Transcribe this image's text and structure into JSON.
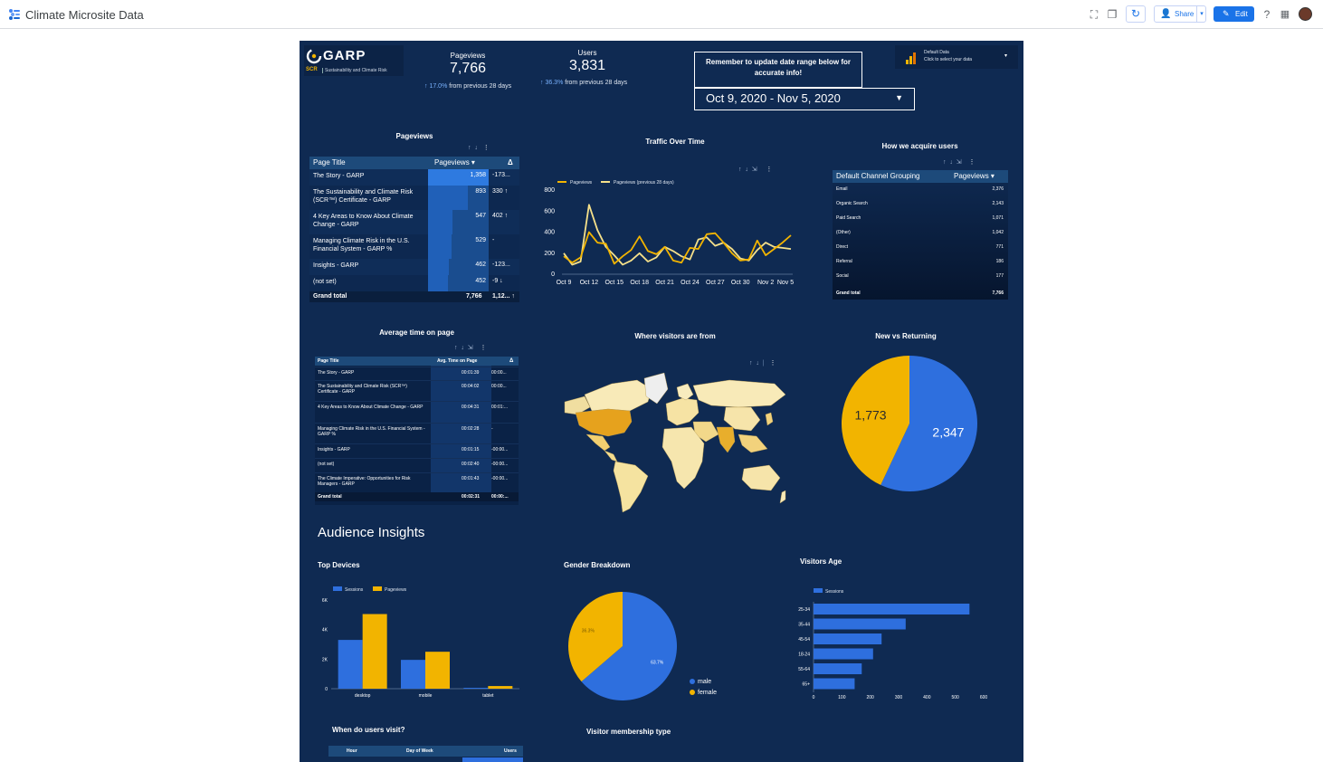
{
  "app": {
    "title": "Climate Microsite Data"
  },
  "toolbar": {
    "share_label": "Share",
    "edit_label": "Edit"
  },
  "header": {
    "logo_text": "GARP",
    "logo_sub_prefix": "SCR",
    "logo_sub": "Sustainability and Climate Risk",
    "kpi": [
      {
        "label": "Pageviews",
        "value": "7,766",
        "delta": "17.0%",
        "delta_suffix": "from previous 28 days"
      },
      {
        "label": "Users",
        "value": "3,831",
        "delta": "36.3%",
        "delta_suffix": "from previous 28 days"
      }
    ],
    "reminder": "Remember to update date range below for accurate info!",
    "date_range": "Oct 9, 2020 - Nov 5, 2020",
    "data_source_title": "Default Data",
    "data_source_sub": "Click to select your data"
  },
  "pageviews_table": {
    "title": "Pageviews",
    "headers": [
      "Page Title",
      "Pageviews ▾",
      "Δ"
    ],
    "rows": [
      {
        "title": "The Story - GARP",
        "value": "1,358",
        "delta": "-173...",
        "bar": 1.0
      },
      {
        "title": "The Sustainability and Climate Risk (SCR™) Certificate - GARP",
        "value": "893",
        "delta": "330 ↑",
        "bar": 0.66
      },
      {
        "title": "4 Key Areas to Know About Climate Change - GARP",
        "value": "547",
        "delta": "402 ↑",
        "bar": 0.4
      },
      {
        "title": "Managing Climate Risk in the U.S. Financial System - GARP %",
        "value": "529",
        "delta": "-",
        "bar": 0.39
      },
      {
        "title": "Insights - GARP",
        "value": "462",
        "delta": "-123...",
        "bar": 0.34
      },
      {
        "title": "(not set)",
        "value": "452",
        "delta": "-9 ↓",
        "bar": 0.33
      }
    ],
    "total_label": "Grand total",
    "total_value": "7,766",
    "total_delta": "1,12... ↑"
  },
  "traffic_chart": {
    "title": "Traffic Over Time"
  },
  "chart_data": [
    {
      "type": "line",
      "title": "Traffic Over Time",
      "x_ticks": [
        "Oct 9",
        "Oct 12",
        "Oct 15",
        "Oct 18",
        "Oct 21",
        "Oct 24",
        "Oct 27",
        "Oct 30",
        "Nov 2",
        "Nov 5"
      ],
      "ylim": [
        0,
        800
      ],
      "y_ticks": [
        "0",
        "200",
        "400",
        "600",
        "800"
      ],
      "series": [
        {
          "name": "Pageviews",
          "color": "#f2b400",
          "values": [
            170,
            110,
            160,
            400,
            300,
            290,
            100,
            170,
            230,
            360,
            220,
            190,
            260,
            130,
            110,
            250,
            240,
            380,
            390,
            300,
            200,
            130,
            140,
            320,
            180,
            240,
            300,
            370
          ]
        },
        {
          "name": "Pageviews (previous 28 days)",
          "color": "#f5e08a",
          "values": [
            200,
            90,
            120,
            660,
            420,
            260,
            180,
            90,
            130,
            200,
            120,
            160,
            260,
            220,
            170,
            140,
            330,
            350,
            270,
            300,
            240,
            150,
            130,
            230,
            300,
            260,
            250,
            240
          ]
        }
      ]
    },
    {
      "type": "pie",
      "title": "New vs Returning",
      "values": [
        2347,
        1773
      ],
      "labels": [
        "2,347",
        "1,773"
      ],
      "colors": [
        "#2e6fde",
        "#f2b400"
      ]
    },
    {
      "type": "bar",
      "title": "Top Devices",
      "categories": [
        "desktop",
        "mobile",
        "tablet"
      ],
      "ylim": [
        0,
        6000
      ],
      "y_ticks": [
        "0",
        "2K",
        "4K",
        "6K"
      ],
      "series": [
        {
          "name": "Sessions",
          "color": "#2e6fde",
          "values": [
            3300,
            1950,
            60
          ]
        },
        {
          "name": "Pageviews",
          "color": "#f2b400",
          "values": [
            5050,
            2500,
            180
          ]
        }
      ]
    },
    {
      "type": "pie",
      "title": "Gender Breakdown",
      "values": [
        63.7,
        36.3
      ],
      "labels": [
        "63.7%",
        "36.3%"
      ],
      "legend": [
        "male",
        "female"
      ],
      "colors": [
        "#2e6fde",
        "#f2b400"
      ]
    },
    {
      "type": "bar",
      "title": "Visitors Age",
      "categories": [
        "25-34",
        "35-44",
        "45-54",
        "18-24",
        "55-64",
        "65+"
      ],
      "xlim": [
        0,
        600
      ],
      "x_ticks": [
        "0",
        "100",
        "200",
        "300",
        "400",
        "500",
        "600"
      ],
      "series": [
        {
          "name": "Sessions",
          "color": "#2e6fde",
          "values": [
            550,
            325,
            240,
            210,
            170,
            145
          ]
        }
      ]
    }
  ],
  "acquire_table": {
    "title": "How we acquire users",
    "headers": [
      "Default Channel Grouping",
      "Pageviews ▾"
    ],
    "rows": [
      {
        "channel": "Email",
        "value": "2,376"
      },
      {
        "channel": "Organic Search",
        "value": "2,143"
      },
      {
        "channel": "Paid Search",
        "value": "1,071"
      },
      {
        "channel": "(Other)",
        "value": "1,042"
      },
      {
        "channel": "Direct",
        "value": "771"
      },
      {
        "channel": "Referral",
        "value": "186"
      },
      {
        "channel": "Social",
        "value": "177"
      }
    ],
    "total_label": "Grand total",
    "total_value": "7,766"
  },
  "avg_time_table": {
    "title": "Average time on page",
    "headers": [
      "Page Title",
      "Avg. Time on Page",
      "Δ"
    ],
    "rows": [
      {
        "title": "The Story - GARP",
        "value": "00:01:39",
        "delta": "00:00..."
      },
      {
        "title": "The Sustainability and Climate Risk (SCR™) Certificate - GARP",
        "value": "00:04:02",
        "delta": "00:00..."
      },
      {
        "title": "4 Key Areas to Know About Climate Change - GARP",
        "value": "00:04:31",
        "delta": "00:01:..."
      },
      {
        "title": "Managing Climate Risk in the U.S. Financial System - GARP %",
        "value": "00:02:28",
        "delta": "-"
      },
      {
        "title": "Insights - GARP",
        "value": "00:01:15",
        "delta": "-00:00..."
      },
      {
        "title": "(not set)",
        "value": "00:02:40",
        "delta": "-00:00..."
      },
      {
        "title": "The Climate Imperative: Opportunities for Risk Managers - GARP",
        "value": "00:01:43",
        "delta": "-00:00..."
      }
    ],
    "total_label": "Grand total",
    "total_value": "00:02:31",
    "total_delta": "00:00:..."
  },
  "map": {
    "title": "Where visitors are from"
  },
  "new_vs_returning": {
    "title": "New vs Returning"
  },
  "audience": {
    "heading": "Audience Insights"
  },
  "devices": {
    "title": "Top Devices"
  },
  "gender": {
    "title": "Gender Breakdown"
  },
  "age": {
    "title": "Visitors Age"
  },
  "when_visit": {
    "title": "When do users visit?",
    "headers": [
      "Hour",
      "Day of Week",
      "Users"
    ]
  },
  "membership": {
    "title": "Visitor membership type"
  }
}
